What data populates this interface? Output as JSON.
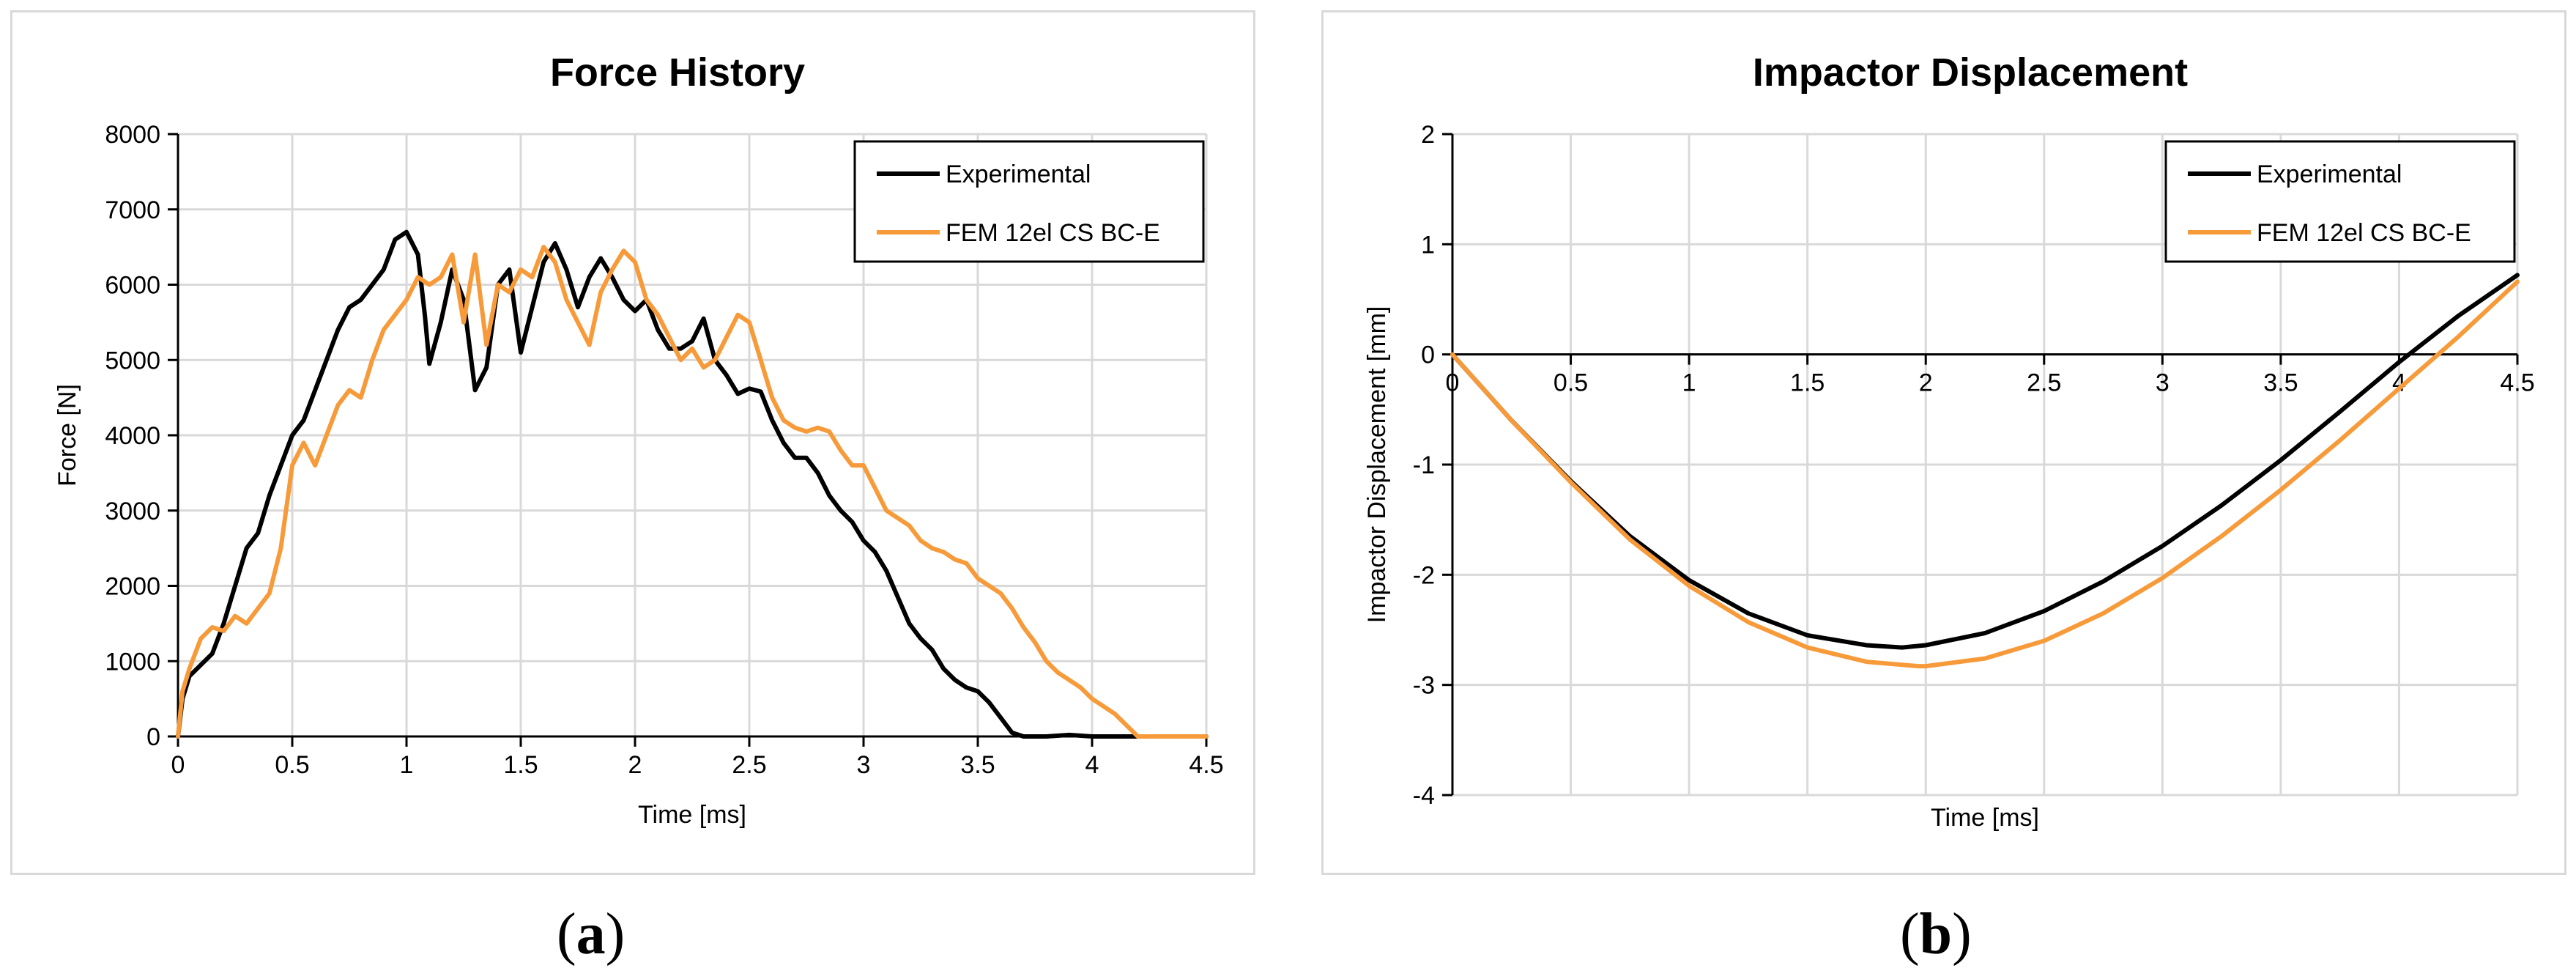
{
  "captions": [
    "a",
    "b"
  ],
  "colors": {
    "experimental": "#000000",
    "fem": "#f79a3a",
    "grid": "#d9d9d9",
    "axis": "#000000"
  },
  "chart_data": [
    {
      "type": "line",
      "title": "Force History",
      "xlabel": "Time [ms]",
      "ylabel": "Force [N]",
      "xlim": [
        0,
        4.5
      ],
      "ylim": [
        0,
        8000
      ],
      "xticks": [
        0,
        0.5,
        1,
        1.5,
        2,
        2.5,
        3,
        3.5,
        4,
        4.5
      ],
      "yticks": [
        0,
        1000,
        2000,
        3000,
        4000,
        5000,
        6000,
        7000,
        8000
      ],
      "xtick_labels": [
        "0",
        "0.5",
        "1",
        "1.5",
        "2",
        "2.5",
        "3",
        "3.5",
        "4",
        "4.5"
      ],
      "ytick_labels": [
        "0",
        "1000",
        "2000",
        "3000",
        "4000",
        "5000",
        "6000",
        "7000",
        "8000"
      ],
      "grid": true,
      "legend_position": "top-right",
      "series": [
        {
          "name": "Experimental",
          "color": "#000000",
          "x": [
            0,
            0.02,
            0.05,
            0.1,
            0.15,
            0.2,
            0.25,
            0.3,
            0.35,
            0.4,
            0.45,
            0.5,
            0.55,
            0.6,
            0.65,
            0.7,
            0.75,
            0.8,
            0.85,
            0.9,
            0.95,
            1.0,
            1.05,
            1.08,
            1.1,
            1.15,
            1.2,
            1.25,
            1.3,
            1.35,
            1.4,
            1.45,
            1.5,
            1.55,
            1.6,
            1.65,
            1.7,
            1.75,
            1.8,
            1.85,
            1.9,
            1.95,
            2.0,
            2.05,
            2.1,
            2.15,
            2.2,
            2.25,
            2.3,
            2.35,
            2.4,
            2.45,
            2.5,
            2.55,
            2.6,
            2.65,
            2.7,
            2.75,
            2.8,
            2.85,
            2.9,
            2.95,
            3.0,
            3.05,
            3.1,
            3.15,
            3.2,
            3.25,
            3.3,
            3.35,
            3.4,
            3.45,
            3.5,
            3.55,
            3.6,
            3.65,
            3.7,
            3.75,
            3.8,
            3.9,
            4.0,
            4.2,
            4.5
          ],
          "y": [
            0,
            500,
            800,
            950,
            1100,
            1500,
            2000,
            2500,
            2700,
            3200,
            3600,
            4000,
            4200,
            4600,
            5000,
            5400,
            5700,
            5800,
            6000,
            6200,
            6600,
            6700,
            6400,
            5600,
            4950,
            5500,
            6200,
            5800,
            4600,
            4900,
            6000,
            6200,
            5100,
            5700,
            6300,
            6550,
            6200,
            5700,
            6100,
            6350,
            6100,
            5800,
            5650,
            5800,
            5400,
            5150,
            5150,
            5250,
            5550,
            5000,
            4800,
            4550,
            4620,
            4580,
            4200,
            3900,
            3700,
            3700,
            3500,
            3200,
            3000,
            2850,
            2600,
            2450,
            2200,
            1850,
            1500,
            1300,
            1150,
            900,
            750,
            650,
            600,
            450,
            250,
            50,
            0,
            0,
            0,
            20,
            0,
            0,
            0
          ]
        },
        {
          "name": "FEM 12el CS BC-E",
          "color": "#f79a3a",
          "x": [
            0,
            0.02,
            0.05,
            0.1,
            0.15,
            0.2,
            0.25,
            0.3,
            0.35,
            0.4,
            0.45,
            0.5,
            0.55,
            0.6,
            0.65,
            0.7,
            0.75,
            0.8,
            0.85,
            0.9,
            0.95,
            1.0,
            1.05,
            1.1,
            1.15,
            1.2,
            1.25,
            1.3,
            1.35,
            1.4,
            1.45,
            1.5,
            1.55,
            1.6,
            1.65,
            1.7,
            1.75,
            1.8,
            1.85,
            1.9,
            1.95,
            2.0,
            2.05,
            2.1,
            2.15,
            2.2,
            2.25,
            2.3,
            2.35,
            2.4,
            2.45,
            2.5,
            2.55,
            2.6,
            2.65,
            2.7,
            2.75,
            2.8,
            2.85,
            2.9,
            2.95,
            3.0,
            3.05,
            3.1,
            3.15,
            3.2,
            3.25,
            3.3,
            3.35,
            3.4,
            3.45,
            3.5,
            3.55,
            3.6,
            3.65,
            3.7,
            3.75,
            3.8,
            3.85,
            3.9,
            3.95,
            4.0,
            4.05,
            4.1,
            4.15,
            4.2,
            4.5
          ],
          "y": [
            0,
            600,
            900,
            1300,
            1450,
            1400,
            1600,
            1500,
            1700,
            1900,
            2500,
            3600,
            3900,
            3600,
            4000,
            4400,
            4600,
            4500,
            5000,
            5400,
            5600,
            5800,
            6100,
            6000,
            6100,
            6400,
            5500,
            6400,
            5200,
            6000,
            5900,
            6200,
            6100,
            6500,
            6300,
            5800,
            5500,
            5200,
            5900,
            6200,
            6450,
            6300,
            5800,
            5600,
            5300,
            5000,
            5150,
            4900,
            5000,
            5300,
            5600,
            5500,
            5000,
            4500,
            4200,
            4100,
            4050,
            4100,
            4050,
            3800,
            3600,
            3600,
            3300,
            3000,
            2900,
            2800,
            2600,
            2500,
            2450,
            2350,
            2300,
            2100,
            2000,
            1900,
            1700,
            1450,
            1250,
            1000,
            850,
            750,
            650,
            500,
            400,
            300,
            150,
            0,
            0
          ]
        }
      ]
    },
    {
      "type": "line",
      "title": "Impactor Displacement",
      "xlabel": "Time [ms]",
      "ylabel": "Impactor Displacement [mm]",
      "xlim": [
        0,
        4.5
      ],
      "ylim": [
        -4,
        2
      ],
      "xticks": [
        0,
        0.5,
        1,
        1.5,
        2,
        2.5,
        3,
        3.5,
        4,
        4.5
      ],
      "yticks": [
        -4,
        -3,
        -2,
        -1,
        0,
        1,
        2
      ],
      "xtick_labels": [
        "0",
        "0.5",
        "1",
        "1.5",
        "2",
        "2.5",
        "3",
        "3.5",
        "4",
        "4.5"
      ],
      "ytick_labels": [
        "-4",
        "-3",
        "-2",
        "-1",
        "0",
        "1",
        "2"
      ],
      "grid": true,
      "legend_position": "top-right",
      "series": [
        {
          "name": "Experimental",
          "color": "#000000",
          "x": [
            0,
            0.25,
            0.5,
            0.75,
            1.0,
            1.25,
            1.5,
            1.75,
            1.9,
            2.0,
            2.25,
            2.5,
            2.75,
            3.0,
            3.25,
            3.5,
            3.75,
            4.0,
            4.25,
            4.5
          ],
          "y": [
            0,
            -0.6,
            -1.15,
            -1.65,
            -2.05,
            -2.35,
            -2.55,
            -2.64,
            -2.66,
            -2.64,
            -2.53,
            -2.33,
            -2.06,
            -1.74,
            -1.37,
            -0.96,
            -0.52,
            -0.07,
            0.35,
            0.72
          ]
        },
        {
          "name": "FEM 12el CS BC-E",
          "color": "#f79a3a",
          "x": [
            0,
            0.25,
            0.5,
            0.75,
            1.0,
            1.25,
            1.5,
            1.75,
            1.97,
            2.0,
            2.25,
            2.5,
            2.75,
            3.0,
            3.25,
            3.5,
            3.75,
            4.0,
            4.25,
            4.5
          ],
          "y": [
            0,
            -0.6,
            -1.16,
            -1.68,
            -2.1,
            -2.43,
            -2.66,
            -2.79,
            -2.83,
            -2.83,
            -2.76,
            -2.6,
            -2.35,
            -2.03,
            -1.65,
            -1.23,
            -0.78,
            -0.31,
            0.16,
            0.66
          ]
        }
      ]
    }
  ]
}
